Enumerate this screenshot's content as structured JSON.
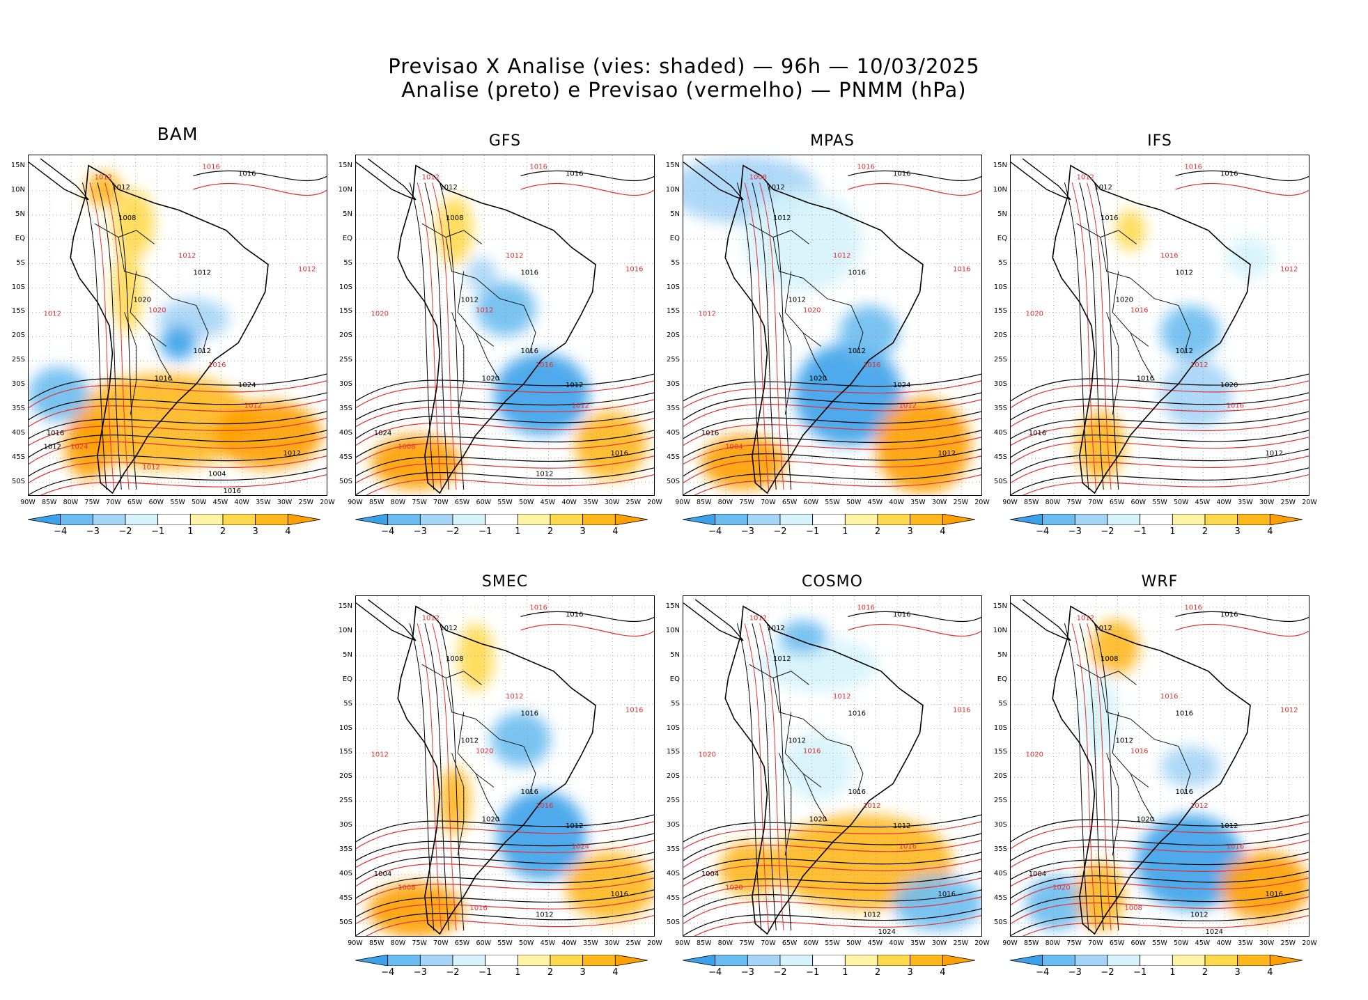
{
  "header": {
    "line1": "Previsao X Analise (vies: shaded) — 96h — 10/03/2025",
    "line2": "Analise (preto) e Previsao (vermelho) — PNMM (hPa)"
  },
  "lat_labels": [
    "15N",
    "10N",
    "5N",
    "EQ",
    "5S",
    "10S",
    "15S",
    "20S",
    "25S",
    "30S",
    "35S",
    "40S",
    "45S",
    "50S"
  ],
  "lon_labels": [
    "90W",
    "85W",
    "80W",
    "75W",
    "70W",
    "65W",
    "60W",
    "55W",
    "50W",
    "45W",
    "40W",
    "35W",
    "30W",
    "25W",
    "20W"
  ],
  "colorbar": {
    "ticks": [
      "−4",
      "−3",
      "−2",
      "−1",
      "1",
      "2",
      "3",
      "4"
    ],
    "colors": [
      "#3aa1ea",
      "#6bbcf0",
      "#a5d4f6",
      "#d6f3fb",
      "#ffffff",
      "#fff3a6",
      "#ffd94d",
      "#ffb81c",
      "#ffa000"
    ]
  },
  "line_colors": {
    "analysis": "#000000",
    "forecast": "#e03030"
  },
  "panels": [
    {
      "name": "BAM",
      "labels_black": [
        "1016",
        "1012",
        "1008",
        "1012",
        "1020",
        "1016",
        "1012",
        "1024",
        "1016",
        "1012",
        "1004",
        "1016",
        "1012"
      ],
      "labels_red": [
        "1016",
        "1012",
        "1012",
        "1012",
        "1012",
        "1020",
        "1016",
        "1012",
        "1024",
        "1012"
      ]
    },
    {
      "name": "GFS",
      "labels_black": [
        "1016",
        "1012",
        "1008",
        "1016",
        "1012",
        "1020",
        "1016",
        "1012",
        "1024",
        "1016",
        "1012"
      ],
      "labels_red": [
        "1016",
        "1012",
        "1012",
        "1016",
        "1020",
        "1012",
        "1016",
        "1012",
        "1008"
      ]
    },
    {
      "name": "MPAS",
      "labels_black": [
        "1016",
        "1012",
        "1012",
        "1016",
        "1012",
        "1020",
        "1012",
        "1024",
        "1016",
        "1012"
      ],
      "labels_red": [
        "1016",
        "1008",
        "1012",
        "1016",
        "1012",
        "1020",
        "1016",
        "1012",
        "1004"
      ]
    },
    {
      "name": "IFS",
      "labels_black": [
        "1016",
        "1012",
        "1016",
        "1012",
        "1020",
        "1016",
        "1012",
        "1020",
        "1016",
        "1012"
      ],
      "labels_red": [
        "1016",
        "1012",
        "1016",
        "1012",
        "1020",
        "1016",
        "1012",
        "1016"
      ]
    },
    {
      "name": "SMEC",
      "labels_black": [
        "1016",
        "1012",
        "1008",
        "1016",
        "1012",
        "1020",
        "1016",
        "1012",
        "1004",
        "1016",
        "1012"
      ],
      "labels_red": [
        "1016",
        "1012",
        "1012",
        "1016",
        "1012",
        "1020",
        "1016",
        "1024",
        "1008",
        "1016"
      ]
    },
    {
      "name": "COSMO",
      "labels_black": [
        "1016",
        "1012",
        "1012",
        "1016",
        "1012",
        "1020",
        "1016",
        "1012",
        "1004",
        "1016",
        "1012",
        "1024"
      ],
      "labels_red": [
        "1016",
        "1012",
        "1012",
        "1016",
        "1020",
        "1016",
        "1012",
        "1016",
        "1020"
      ]
    },
    {
      "name": "WRF",
      "labels_black": [
        "1016",
        "1012",
        "1008",
        "1016",
        "1012",
        "1020",
        "1016",
        "1012",
        "1004",
        "1016",
        "1012",
        "1024"
      ],
      "labels_red": [
        "1016",
        "1012",
        "1016",
        "1012",
        "1020",
        "1016",
        "1012",
        "1016",
        "1020",
        "1008"
      ]
    }
  ]
}
